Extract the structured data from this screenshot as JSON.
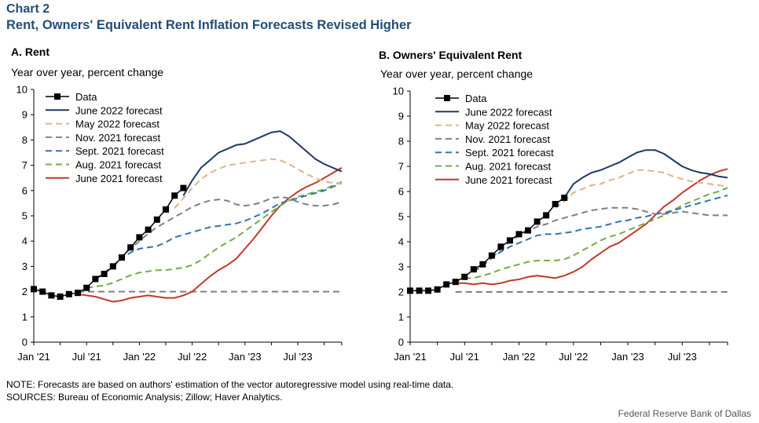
{
  "header": {
    "label": "Chart 2",
    "title": "Rent, Owners' Equivalent Rent Inflation Forecasts Revised Higher"
  },
  "footer": {
    "note": "NOTE: Forecasts are based on authors' estimation of the vector autoregressive model using real-time data.",
    "sources": "SOURCES: Bureau of Economic Analysis; Zillow; Haver Analytics.",
    "credit": "Federal Reserve Bank of Dallas"
  },
  "colors": {
    "data": "#000000",
    "june2022": "#1f3864",
    "may2022": "#e0b489",
    "nov2021": "#808080",
    "sept2021": "#2e75b6",
    "aug2021": "#70ad47",
    "june2021": "#c0392b"
  },
  "chart_data": [
    {
      "type": "line",
      "title": "A. Rent",
      "ylabel": "Year over year, percent change",
      "xlabel": "",
      "x_ticks": [
        "Jan '21",
        "Jul '21",
        "Jan '22",
        "Jul '22",
        "Jan '23",
        "Jul '23"
      ],
      "y_ticks": [
        0,
        1,
        2,
        3,
        4,
        5,
        6,
        7,
        8,
        9,
        10
      ],
      "ylim": [
        0,
        10
      ],
      "xlim": [
        "2021-01",
        "2023-12"
      ],
      "legend_position": "top-left",
      "series": [
        {
          "name": "Data",
          "style": "markers",
          "color_key": "data",
          "x": [
            "2021-01",
            "2021-02",
            "2021-03",
            "2021-04",
            "2021-05",
            "2021-06",
            "2021-07",
            "2021-08",
            "2021-09",
            "2021-10",
            "2021-11",
            "2021-12",
            "2022-01",
            "2022-02",
            "2022-03",
            "2022-04",
            "2022-05",
            "2022-06"
          ],
          "values": [
            2.1,
            2.0,
            1.85,
            1.8,
            1.9,
            1.95,
            2.15,
            2.5,
            2.7,
            3.0,
            3.35,
            3.75,
            4.15,
            4.45,
            4.85,
            5.25,
            5.8,
            6.1
          ]
        },
        {
          "name": "June 2022 forecast",
          "style": "solid",
          "color_key": "june2022",
          "x": [
            "2022-06",
            "2022-07",
            "2022-08",
            "2022-09",
            "2022-10",
            "2022-11",
            "2022-12",
            "2023-01",
            "2023-02",
            "2023-03",
            "2023-04",
            "2023-05",
            "2023-06",
            "2023-07",
            "2023-08",
            "2023-09",
            "2023-10",
            "2023-11",
            "2023-12"
          ],
          "values": [
            5.8,
            6.4,
            6.9,
            7.2,
            7.5,
            7.65,
            7.8,
            7.85,
            8.0,
            8.15,
            8.3,
            8.35,
            8.15,
            7.85,
            7.55,
            7.25,
            7.05,
            6.9,
            6.75
          ]
        },
        {
          "name": "May 2022 forecast",
          "style": "dashed",
          "color_key": "may2022",
          "x": [
            "2022-05",
            "2022-06",
            "2022-07",
            "2022-08",
            "2022-09",
            "2022-10",
            "2022-11",
            "2022-12",
            "2023-01",
            "2023-02",
            "2023-03",
            "2023-04",
            "2023-05",
            "2023-06",
            "2023-07",
            "2023-08",
            "2023-09",
            "2023-10",
            "2023-11",
            "2023-12"
          ],
          "values": [
            5.3,
            5.7,
            6.1,
            6.45,
            6.7,
            6.85,
            7.0,
            7.05,
            7.1,
            7.15,
            7.2,
            7.25,
            7.2,
            7.05,
            6.85,
            6.65,
            6.5,
            6.35,
            6.3,
            6.3
          ]
        },
        {
          "name": "Nov. 2021 forecast",
          "style": "dashed",
          "color_key": "nov2021",
          "x": [
            "2021-10",
            "2021-11",
            "2021-12",
            "2022-01",
            "2022-02",
            "2022-03",
            "2022-04",
            "2022-05",
            "2022-06",
            "2022-07",
            "2022-08",
            "2022-09",
            "2022-10",
            "2022-11",
            "2022-12",
            "2023-01",
            "2023-02",
            "2023-03",
            "2023-04",
            "2023-05",
            "2023-06",
            "2023-07",
            "2023-08",
            "2023-09",
            "2023-10",
            "2023-11",
            "2023-12"
          ],
          "values": [
            3.0,
            3.4,
            3.7,
            4.0,
            4.3,
            4.55,
            4.75,
            4.95,
            5.15,
            5.35,
            5.5,
            5.6,
            5.65,
            5.6,
            5.45,
            5.4,
            5.45,
            5.55,
            5.7,
            5.75,
            5.7,
            5.55,
            5.45,
            5.4,
            5.4,
            5.45,
            5.55
          ]
        },
        {
          "name": "Sept. 2021 forecast",
          "style": "dashed",
          "color_key": "sept2021",
          "x": [
            "2021-08",
            "2021-09",
            "2021-10",
            "2021-11",
            "2021-12",
            "2022-01",
            "2022-02",
            "2022-03",
            "2022-04",
            "2022-05",
            "2022-06",
            "2022-07",
            "2022-08",
            "2022-09",
            "2022-10",
            "2022-11",
            "2022-12",
            "2023-01",
            "2023-02",
            "2023-03",
            "2023-04",
            "2023-05",
            "2023-06",
            "2023-07",
            "2023-08",
            "2023-09",
            "2023-10",
            "2023-11",
            "2023-12"
          ],
          "values": [
            2.5,
            2.75,
            3.0,
            3.3,
            3.55,
            3.7,
            3.75,
            3.8,
            3.95,
            4.15,
            4.25,
            4.35,
            4.45,
            4.55,
            4.6,
            4.65,
            4.7,
            4.8,
            4.95,
            5.1,
            5.3,
            5.5,
            5.6,
            5.7,
            5.8,
            5.9,
            6.0,
            6.15,
            6.3
          ]
        },
        {
          "name": "Aug. 2021 forecast",
          "style": "dashed",
          "color_key": "aug2021",
          "x": [
            "2021-07",
            "2021-08",
            "2021-09",
            "2021-10",
            "2021-11",
            "2021-12",
            "2022-01",
            "2022-02",
            "2022-03",
            "2022-04",
            "2022-05",
            "2022-06",
            "2022-07",
            "2022-08",
            "2022-09",
            "2022-10",
            "2022-11",
            "2022-12",
            "2023-01",
            "2023-02",
            "2023-03",
            "2023-04",
            "2023-05",
            "2023-06",
            "2023-07",
            "2023-08",
            "2023-09",
            "2023-10",
            "2023-11",
            "2023-12"
          ],
          "values": [
            2.15,
            2.2,
            2.25,
            2.35,
            2.5,
            2.65,
            2.75,
            2.8,
            2.85,
            2.85,
            2.9,
            2.95,
            3.05,
            3.25,
            3.5,
            3.75,
            3.95,
            4.15,
            4.4,
            4.65,
            4.9,
            5.15,
            5.4,
            5.6,
            5.75,
            5.85,
            5.95,
            6.05,
            6.2,
            6.35
          ]
        },
        {
          "name": "June 2021 forecast",
          "style": "solid",
          "color_key": "june2021",
          "x": [
            "2021-06",
            "2021-07",
            "2021-08",
            "2021-09",
            "2021-10",
            "2021-11",
            "2021-12",
            "2022-01",
            "2022-02",
            "2022-03",
            "2022-04",
            "2022-05",
            "2022-06",
            "2022-07",
            "2022-08",
            "2022-09",
            "2022-10",
            "2022-11",
            "2022-12",
            "2023-01",
            "2023-02",
            "2023-03",
            "2023-04",
            "2023-05",
            "2023-06",
            "2023-07",
            "2023-08",
            "2023-09",
            "2023-10",
            "2023-11",
            "2023-12"
          ],
          "values": [
            1.9,
            1.85,
            1.8,
            1.7,
            1.6,
            1.65,
            1.75,
            1.8,
            1.85,
            1.8,
            1.75,
            1.75,
            1.85,
            2.0,
            2.3,
            2.6,
            2.85,
            3.05,
            3.3,
            3.7,
            4.1,
            4.55,
            5.0,
            5.4,
            5.7,
            5.95,
            6.15,
            6.3,
            6.5,
            6.7,
            6.9
          ]
        },
        {
          "name": "",
          "style": "dashed",
          "color_key": "nov2021",
          "role": "reference",
          "x": [
            "2021-06",
            "2023-12"
          ],
          "values": [
            2.0,
            2.0
          ]
        }
      ]
    },
    {
      "type": "line",
      "title": "B. Owners' Equivalent Rent",
      "ylabel": "Year over year, percent change",
      "xlabel": "",
      "x_ticks": [
        "Jan '21",
        "Jul '21",
        "Jan '22",
        "Jul '22",
        "Jan '23",
        "Jul '23"
      ],
      "y_ticks": [
        0,
        1,
        2,
        3,
        4,
        5,
        6,
        7,
        8,
        9,
        10
      ],
      "ylim": [
        0,
        10
      ],
      "xlim": [
        "2021-01",
        "2023-12"
      ],
      "legend_position": "top-left",
      "series": [
        {
          "name": "Data",
          "style": "markers",
          "color_key": "data",
          "x": [
            "2021-01",
            "2021-02",
            "2021-03",
            "2021-04",
            "2021-05",
            "2021-06",
            "2021-07",
            "2021-08",
            "2021-09",
            "2021-10",
            "2021-11",
            "2021-12",
            "2022-01",
            "2022-02",
            "2022-03",
            "2022-04",
            "2022-05",
            "2022-06"
          ],
          "values": [
            2.05,
            2.05,
            2.05,
            2.1,
            2.3,
            2.4,
            2.6,
            2.9,
            3.1,
            3.45,
            3.8,
            4.05,
            4.3,
            4.45,
            4.8,
            5.05,
            5.5,
            5.75
          ]
        },
        {
          "name": "June 2022 forecast",
          "style": "solid",
          "color_key": "june2022",
          "x": [
            "2022-06",
            "2022-07",
            "2022-08",
            "2022-09",
            "2022-10",
            "2022-11",
            "2022-12",
            "2023-01",
            "2023-02",
            "2023-03",
            "2023-04",
            "2023-05",
            "2023-06",
            "2023-07",
            "2023-08",
            "2023-09",
            "2023-10",
            "2023-11",
            "2023-12"
          ],
          "values": [
            5.75,
            6.3,
            6.55,
            6.75,
            6.85,
            7.0,
            7.15,
            7.35,
            7.55,
            7.65,
            7.65,
            7.5,
            7.25,
            7.0,
            6.85,
            6.75,
            6.7,
            6.6,
            6.55
          ]
        },
        {
          "name": "May 2022 forecast",
          "style": "dashed",
          "color_key": "may2022",
          "x": [
            "2022-05",
            "2022-06",
            "2022-07",
            "2022-08",
            "2022-09",
            "2022-10",
            "2022-11",
            "2022-12",
            "2023-01",
            "2023-02",
            "2023-03",
            "2023-04",
            "2023-05",
            "2023-06",
            "2023-07",
            "2023-08",
            "2023-09",
            "2023-10",
            "2023-11",
            "2023-12"
          ],
          "values": [
            5.35,
            5.6,
            5.95,
            6.1,
            6.25,
            6.3,
            6.45,
            6.55,
            6.7,
            6.85,
            6.85,
            6.8,
            6.75,
            6.6,
            6.5,
            6.4,
            6.35,
            6.3,
            6.25,
            6.2
          ]
        },
        {
          "name": "Nov. 2021 forecast",
          "style": "dashed",
          "color_key": "nov2021",
          "x": [
            "2021-10",
            "2021-11",
            "2021-12",
            "2022-01",
            "2022-02",
            "2022-03",
            "2022-04",
            "2022-05",
            "2022-06",
            "2022-07",
            "2022-08",
            "2022-09",
            "2022-10",
            "2022-11",
            "2022-12",
            "2023-01",
            "2023-02",
            "2023-03",
            "2023-04",
            "2023-05",
            "2023-06",
            "2023-07",
            "2023-08",
            "2023-09",
            "2023-10",
            "2023-11",
            "2023-12"
          ],
          "values": [
            3.35,
            3.7,
            4.0,
            4.25,
            4.4,
            4.6,
            4.7,
            4.85,
            4.95,
            5.05,
            5.15,
            5.25,
            5.3,
            5.35,
            5.35,
            5.35,
            5.3,
            5.2,
            5.1,
            5.1,
            5.15,
            5.2,
            5.15,
            5.1,
            5.05,
            5.05,
            5.05
          ]
        },
        {
          "name": "Sept. 2021 forecast",
          "style": "dashed",
          "color_key": "sept2021",
          "x": [
            "2021-08",
            "2021-09",
            "2021-10",
            "2021-11",
            "2021-12",
            "2022-01",
            "2022-02",
            "2022-03",
            "2022-04",
            "2022-05",
            "2022-06",
            "2022-07",
            "2022-08",
            "2022-09",
            "2022-10",
            "2022-11",
            "2022-12",
            "2023-01",
            "2023-02",
            "2023-03",
            "2023-04",
            "2023-05",
            "2023-06",
            "2023-07",
            "2023-08",
            "2023-09",
            "2023-10",
            "2023-11",
            "2023-12"
          ],
          "values": [
            2.8,
            3.05,
            3.35,
            3.6,
            3.8,
            3.95,
            4.1,
            4.25,
            4.3,
            4.3,
            4.35,
            4.4,
            4.5,
            4.55,
            4.6,
            4.7,
            4.8,
            4.85,
            4.95,
            5.0,
            5.1,
            5.15,
            5.25,
            5.35,
            5.45,
            5.55,
            5.65,
            5.75,
            5.85
          ]
        },
        {
          "name": "Aug. 2021 forecast",
          "style": "dashed",
          "color_key": "aug2021",
          "x": [
            "2021-07",
            "2021-08",
            "2021-09",
            "2021-10",
            "2021-11",
            "2021-12",
            "2022-01",
            "2022-02",
            "2022-03",
            "2022-04",
            "2022-05",
            "2022-06",
            "2022-07",
            "2022-08",
            "2022-09",
            "2022-10",
            "2022-11",
            "2022-12",
            "2023-01",
            "2023-02",
            "2023-03",
            "2023-04",
            "2023-05",
            "2023-06",
            "2023-07",
            "2023-08",
            "2023-09",
            "2023-10",
            "2023-11",
            "2023-12"
          ],
          "values": [
            2.55,
            2.55,
            2.65,
            2.75,
            2.9,
            3.0,
            3.1,
            3.2,
            3.25,
            3.25,
            3.25,
            3.3,
            3.45,
            3.65,
            3.85,
            4.05,
            4.2,
            4.3,
            4.45,
            4.6,
            4.75,
            4.9,
            5.05,
            5.25,
            5.45,
            5.6,
            5.75,
            5.9,
            6.0,
            6.15
          ]
        },
        {
          "name": "June 2021 forecast",
          "style": "solid",
          "color_key": "june2021",
          "x": [
            "2021-06",
            "2021-07",
            "2021-08",
            "2021-09",
            "2021-10",
            "2021-11",
            "2021-12",
            "2022-01",
            "2022-02",
            "2022-03",
            "2022-04",
            "2022-05",
            "2022-06",
            "2022-07",
            "2022-08",
            "2022-09",
            "2022-10",
            "2022-11",
            "2022-12",
            "2023-01",
            "2023-02",
            "2023-03",
            "2023-04",
            "2023-05",
            "2023-06",
            "2023-07",
            "2023-08",
            "2023-09",
            "2023-10",
            "2023-11",
            "2023-12"
          ],
          "values": [
            2.35,
            2.35,
            2.3,
            2.35,
            2.3,
            2.35,
            2.45,
            2.5,
            2.6,
            2.65,
            2.6,
            2.55,
            2.65,
            2.8,
            3.0,
            3.3,
            3.55,
            3.8,
            3.95,
            4.2,
            4.45,
            4.7,
            5.05,
            5.4,
            5.65,
            5.95,
            6.2,
            6.45,
            6.65,
            6.8,
            6.9
          ]
        },
        {
          "name": "",
          "style": "dashed",
          "color_key": "nov2021",
          "role": "reference",
          "x": [
            "2021-06",
            "2023-12"
          ],
          "values": [
            2.0,
            2.0
          ]
        }
      ]
    }
  ]
}
